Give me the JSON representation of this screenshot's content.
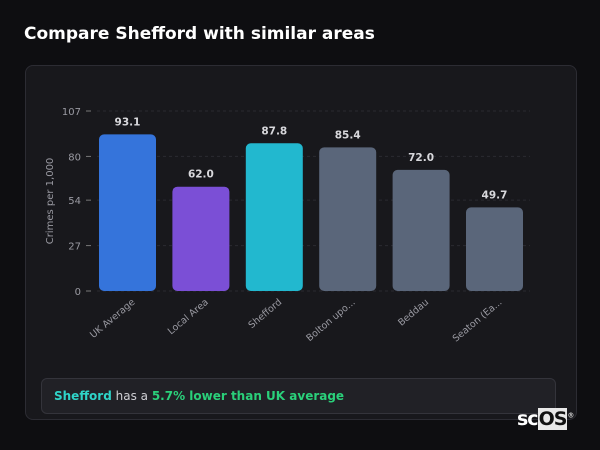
{
  "title": "Compare Shefford with similar areas",
  "summary": {
    "place": "Shefford",
    "middle": " has a ",
    "highlight": "5.7% lower than UK average"
  },
  "logo": "scOS",
  "chart_data": {
    "type": "bar",
    "title": "",
    "xlabel": "",
    "ylabel": "Crimes per 1,000",
    "ylim": [
      0,
      107
    ],
    "yticks": [
      0,
      27,
      54,
      80,
      107
    ],
    "grid": true,
    "categories": [
      "UK Average",
      "Local Area",
      "Shefford",
      "Bolton upo...",
      "Beddau",
      "Seaton (Ea..."
    ],
    "values": [
      93.1,
      62.0,
      87.8,
      85.4,
      72.0,
      49.7
    ],
    "data_labels": [
      "93.1",
      "62.0",
      "87.8",
      "85.4",
      "72.0",
      "49.7"
    ],
    "colors": [
      "#3574db",
      "#7b4fd6",
      "#22b8cf",
      "#5a667a",
      "#5a667a",
      "#5a667a"
    ]
  }
}
